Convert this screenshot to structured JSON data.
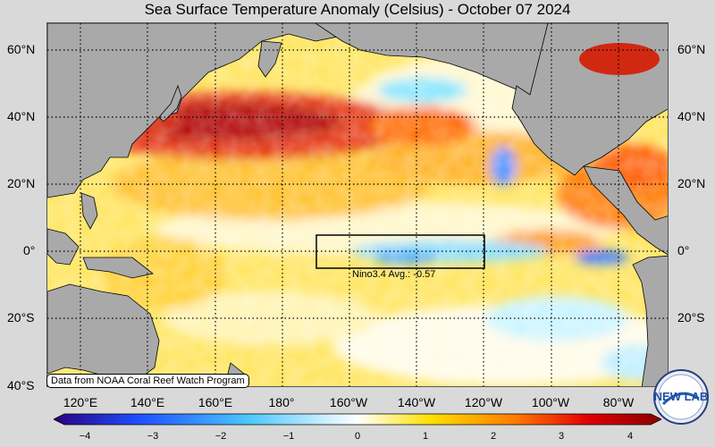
{
  "title": "Sea Surface Temperature Anomaly (Celsius) - October 07 2024",
  "lat_labels": [
    "60°N",
    "40°N",
    "20°N",
    "0°",
    "20°S",
    "40°S"
  ],
  "lon_labels": [
    "120°E",
    "140°E",
    "160°E",
    "180°",
    "160°W",
    "140°W",
    "120°W",
    "100°W",
    "80°W"
  ],
  "colorbar": {
    "min": -4,
    "max": 4,
    "tick_labels": [
      "−4",
      "−3",
      "−2",
      "−1",
      "0",
      "1",
      "2",
      "3",
      "4"
    ],
    "colors": [
      "#2a0080",
      "#1f4fff",
      "#4cc7ff",
      "#ffffff",
      "#ffe000",
      "#ff7a00",
      "#e00000",
      "#8a0000"
    ]
  },
  "nino_box": {
    "label": "Nino3.4 Avg.: -0.57",
    "lon_range": [
      "170°W",
      "120°W"
    ],
    "lat_range": [
      "5°N",
      "5°S"
    ]
  },
  "attribution": "Data from NOAA Coral Reef Watch Program",
  "logo": {
    "text": "NEW LAB"
  },
  "colors": {
    "land": "#a9a9a9",
    "frame_background": "#d9d9d9"
  }
}
